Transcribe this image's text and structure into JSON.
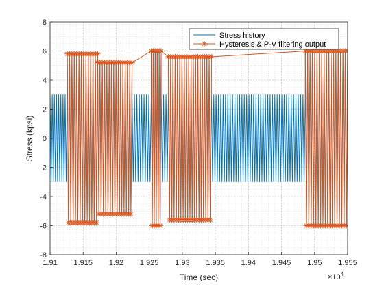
{
  "chart_data": {
    "type": "line",
    "title": "",
    "xlabel": "Time (sec)",
    "ylabel": "Stress (kpsi)",
    "x_exponent_label": "×10",
    "x_exponent_power": "4",
    "xlim": [
      19100,
      19550
    ],
    "ylim": [
      -8,
      8
    ],
    "x_ticks": [
      19100,
      19150,
      19200,
      19250,
      19300,
      19350,
      19400,
      19450,
      19500,
      19550
    ],
    "x_tick_labels": [
      "1.91",
      "1.915",
      "1.92",
      "1.925",
      "1.93",
      "1.935",
      "1.94",
      "1.945",
      "1.95",
      "1.955"
    ],
    "y_ticks": [
      -8,
      -6,
      -4,
      -2,
      0,
      2,
      4,
      6,
      8
    ],
    "y_tick_labels": [
      "-8",
      "-6",
      "-4",
      "-2",
      "0",
      "2",
      "4",
      "6",
      "8"
    ],
    "grid": true,
    "minor_grid": true,
    "legend_position": "top-right",
    "series": [
      {
        "name": "Stress history",
        "color": "#0072BD",
        "marker": "none",
        "segments": [
          {
            "x_start": 19100,
            "x_end": 19126,
            "amplitude": 3.0,
            "cycles": 8
          },
          {
            "x_start": 19126,
            "x_end": 19172,
            "amplitude": 5.8,
            "cycles": 13
          },
          {
            "x_start": 19172,
            "x_end": 19224,
            "amplitude": 5.2,
            "cycles": 15
          },
          {
            "x_start": 19224,
            "x_end": 19253,
            "amplitude": 3.0,
            "cycles": 8
          },
          {
            "x_start": 19253,
            "x_end": 19268,
            "amplitude": 6.0,
            "cycles": 5
          },
          {
            "x_start": 19268,
            "x_end": 19279,
            "amplitude": 3.0,
            "cycles": 3
          },
          {
            "x_start": 19279,
            "x_end": 19344,
            "amplitude": 5.6,
            "cycles": 19
          },
          {
            "x_start": 19344,
            "x_end": 19486,
            "amplitude": 3.0,
            "cycles": 40
          },
          {
            "x_start": 19486,
            "x_end": 19550,
            "amplitude": 6.0,
            "cycles": 18
          }
        ]
      },
      {
        "name": "Hysteresis & P-V filtering output",
        "color": "#D95319",
        "marker": "asterisk",
        "segments": [
          {
            "x_start": 19126,
            "x_end": 19172,
            "amplitude": 5.8,
            "cycles": 13
          },
          {
            "x_start": 19172,
            "x_end": 19224,
            "amplitude": 5.2,
            "cycles": 15
          },
          {
            "x_start": 19253,
            "x_end": 19268,
            "amplitude": 6.0,
            "cycles": 5
          },
          {
            "x_start": 19279,
            "x_end": 19344,
            "amplitude": 5.6,
            "cycles": 19
          },
          {
            "x_start": 19486,
            "x_end": 19550,
            "amplitude": 6.0,
            "cycles": 18
          }
        ]
      }
    ]
  }
}
